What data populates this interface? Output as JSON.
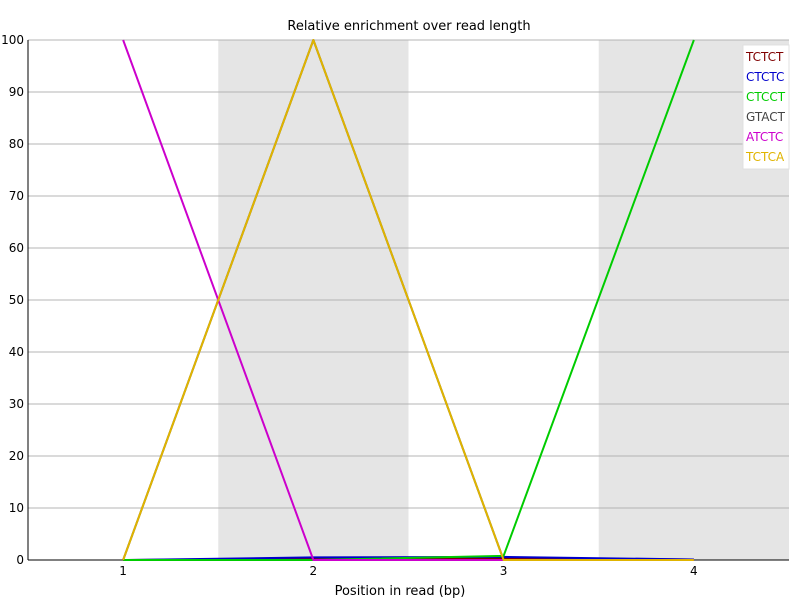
{
  "chart_data": {
    "type": "line",
    "title": "Relative enrichment over read length",
    "xlabel": "Position in read (bp)",
    "ylabel": "",
    "categories": [
      "1",
      "2",
      "3",
      "4"
    ],
    "ylim": [
      0,
      100
    ],
    "yticks": [
      0,
      10,
      20,
      30,
      40,
      50,
      60,
      70,
      80,
      90,
      100
    ],
    "grid": true,
    "alternating_column_shading": true,
    "legend_position": "top-right",
    "series": [
      {
        "name": "TCTCT",
        "color": "#800000",
        "values": [
          0,
          0.2,
          0.3,
          0.1
        ]
      },
      {
        "name": "CTCTC",
        "color": "#0000cc",
        "values": [
          0,
          0.5,
          0.6,
          0.1
        ]
      },
      {
        "name": "CTCCT",
        "color": "#00cc00",
        "values": [
          0,
          0,
          0.8,
          100
        ]
      },
      {
        "name": "GTACT",
        "color": "#444444",
        "values": [
          0,
          100,
          0,
          0
        ]
      },
      {
        "name": "ATCTC",
        "color": "#cc00cc",
        "values": [
          100,
          0,
          0,
          0
        ]
      },
      {
        "name": "TCTCA",
        "color": "#e0b400",
        "values": [
          0,
          100,
          0,
          0
        ]
      }
    ]
  }
}
